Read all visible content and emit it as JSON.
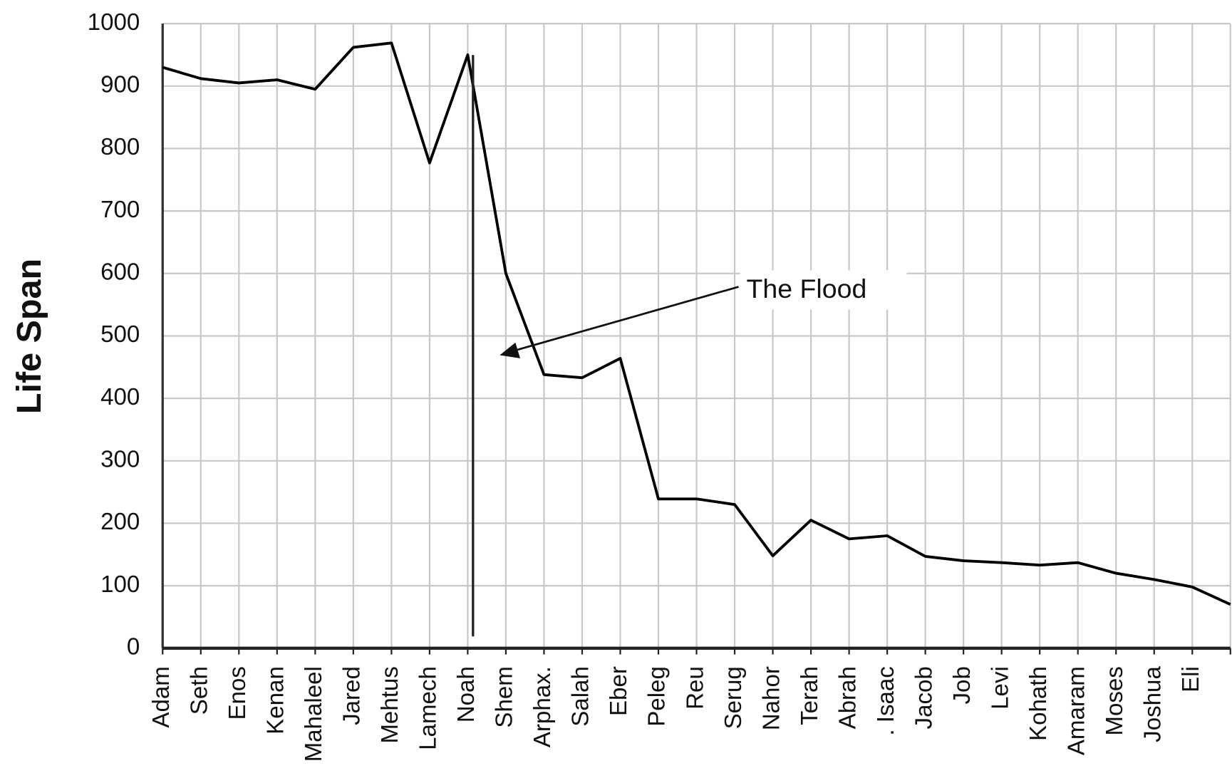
{
  "chart_data": {
    "type": "line",
    "y_label": "Life Span",
    "annotation": "The Flood",
    "categories": [
      "Adam",
      "Seth",
      "Enos",
      "Kenan",
      "Mahaleel",
      "Jared",
      "Mehtus",
      "Lamech",
      "Noah",
      "Shem",
      "Arphax.",
      "Salah",
      "Eber",
      "Peleg",
      "Reu",
      "Serug",
      "Nahor",
      "Terah",
      "Abrah",
      ". Isaac",
      "Jacob",
      "Job",
      "Levi",
      "Kohath",
      "Amaram",
      "Moses",
      "Joshua",
      "Eli",
      null
    ],
    "values": [
      930,
      912,
      905,
      910,
      895,
      962,
      969,
      777,
      950,
      600,
      438,
      433,
      464,
      239,
      239,
      230,
      148,
      205,
      175,
      180,
      147,
      140,
      137,
      133,
      137,
      120,
      110,
      98,
      70
    ],
    "color": "#000000",
    "ylim": [
      0,
      1000
    ],
    "yticks": [
      0,
      100,
      200,
      300,
      400,
      500,
      600,
      700,
      800,
      900,
      1000
    ],
    "grid": true
  }
}
